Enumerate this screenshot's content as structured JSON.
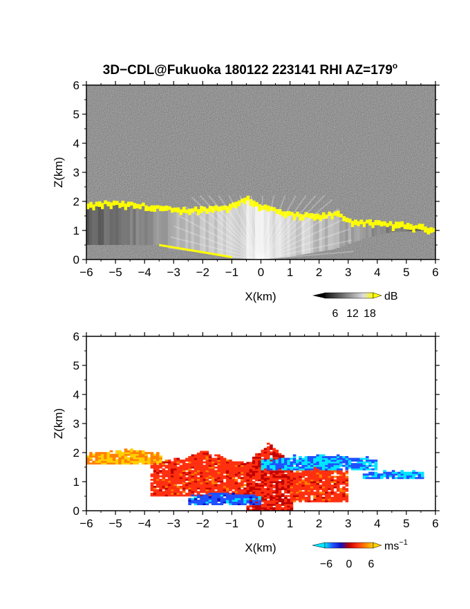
{
  "title": "3D−CDL@Fukuoka 180122 223141 RHI AZ=179",
  "title_superscript": "o",
  "chart_data": [
    {
      "type": "heatmap",
      "quantity": "reflectivity",
      "xlabel": "X(km)",
      "ylabel": "Z(km)",
      "xlim": [
        -6,
        6
      ],
      "ylim": [
        0,
        6
      ],
      "xticks": [
        "−6",
        "−5",
        "−4",
        "−3",
        "−2",
        "−1",
        "0",
        "1",
        "2",
        "3",
        "4",
        "5",
        "6"
      ],
      "yticks": [
        "0",
        "1",
        "2",
        "3",
        "4",
        "5",
        "6"
      ],
      "background": "grayscale noise",
      "cloud_top_km": [
        [
          -6,
          1.9
        ],
        [
          -5.3,
          2.0
        ],
        [
          -4.5,
          1.95
        ],
        [
          -3.5,
          1.85
        ],
        [
          -3,
          1.75
        ],
        [
          -2,
          1.8
        ],
        [
          -1,
          1.9
        ],
        [
          -0.5,
          2.2
        ],
        [
          0,
          1.9
        ],
        [
          1,
          1.6
        ],
        [
          2,
          1.55
        ],
        [
          2.7,
          1.65
        ],
        [
          3,
          1.4
        ],
        [
          4,
          1.3
        ],
        [
          5,
          1.25
        ],
        [
          6,
          1.1
        ]
      ],
      "cloud_base_km": [
        [
          -3.5,
          0.5
        ],
        [
          -2,
          0.25
        ],
        [
          -1,
          0.05
        ],
        [
          0,
          0.0
        ],
        [
          1,
          0.1
        ],
        [
          2.5,
          0.35
        ],
        [
          3.5,
          0.7
        ],
        [
          4.5,
          0.95
        ],
        [
          6,
          1.0
        ]
      ],
      "highlight_color": "#ffff00",
      "colorbar": {
        "ticks": [
          "6",
          "12",
          "18"
        ],
        "unit": "dB",
        "colors": [
          "#111111",
          "#444444",
          "#777777",
          "#aaaaaa",
          "#dddddd",
          "#ffff00"
        ]
      }
    },
    {
      "type": "heatmap",
      "quantity": "doppler velocity",
      "xlabel": "X(km)",
      "ylabel": "Z(km)",
      "xlim": [
        -6,
        6
      ],
      "ylim": [
        0,
        6
      ],
      "xticks": [
        "−6",
        "−5",
        "−4",
        "−3",
        "−2",
        "−1",
        "0",
        "1",
        "2",
        "3",
        "4",
        "5",
        "6"
      ],
      "yticks": [
        "0",
        "1",
        "2",
        "3",
        "4",
        "5",
        "6"
      ],
      "velocity_regions": [
        {
          "x": [
            -6,
            -3.5
          ],
          "top": 2.1,
          "base": 1.6,
          "value": 5
        },
        {
          "x": [
            -3.8,
            -0.3
          ],
          "top": 2.0,
          "base": 0.5,
          "value": 2
        },
        {
          "x": [
            -0.5,
            1.0
          ],
          "top": 2.3,
          "base": 0.0,
          "value": 1
        },
        {
          "x": [
            1.0,
            3.0
          ],
          "top": 1.7,
          "base": 0.3,
          "value": 2
        },
        {
          "x": [
            0.0,
            4.0
          ],
          "top": 1.9,
          "base": 1.4,
          "value": -5
        },
        {
          "x": [
            3.5,
            5.5
          ],
          "top": 1.35,
          "base": 1.1,
          "value": -5
        },
        {
          "x": [
            -2.5,
            0.0
          ],
          "top": 0.6,
          "base": 0.2,
          "value": -4
        }
      ],
      "colorbar": {
        "ticks": [
          "−6",
          "0",
          "6"
        ],
        "unit": "ms",
        "unit_superscript": "−1",
        "colors": [
          "#00e5ff",
          "#2050ff",
          "#1010c0",
          "#c00000",
          "#ff3010",
          "#ff8000",
          "#ffd000"
        ]
      }
    }
  ]
}
